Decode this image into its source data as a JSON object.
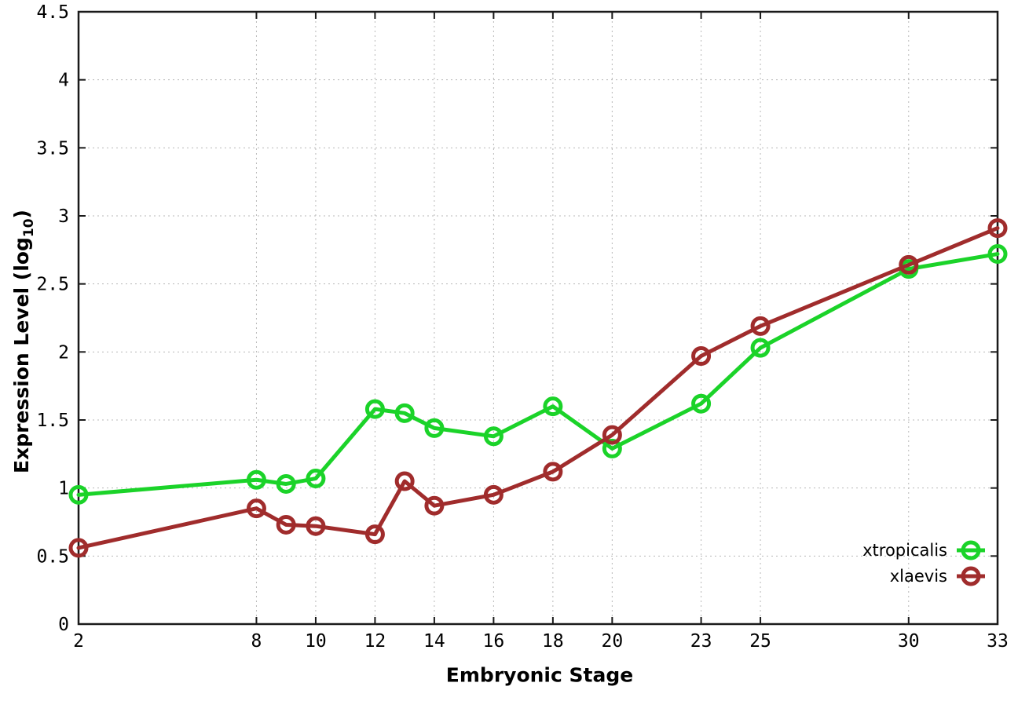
{
  "chart_data": {
    "type": "line",
    "title": "",
    "xlabel": "Embryonic Stage",
    "ylabel": "Expression Level (log10)",
    "ylabel_parts": {
      "main": "Expression Level (log",
      "sub": "10",
      "end": ")"
    },
    "xlim": [
      2,
      33
    ],
    "ylim": [
      0,
      4.5
    ],
    "xticks": [
      2,
      8,
      10,
      12,
      14,
      16,
      18,
      20,
      23,
      25,
      30,
      33
    ],
    "yticks": [
      0,
      0.5,
      1,
      1.5,
      2,
      2.5,
      3,
      3.5,
      4,
      4.5
    ],
    "grid": true,
    "legend_position": "inside-bottom-right",
    "x": [
      2,
      8,
      9,
      10,
      12,
      13,
      14,
      16,
      18,
      20,
      23,
      25,
      30,
      33
    ],
    "series": [
      {
        "name": "xtropicalis",
        "color": "#1bd329",
        "values": [
          0.95,
          1.06,
          1.03,
          1.07,
          1.58,
          1.55,
          1.44,
          1.38,
          1.6,
          1.29,
          1.62,
          2.03,
          2.61,
          2.72
        ]
      },
      {
        "name": "xlaevis",
        "color": "#a02c2c",
        "values": [
          0.56,
          0.85,
          0.73,
          0.72,
          0.66,
          1.05,
          0.87,
          0.95,
          1.12,
          1.39,
          1.97,
          2.19,
          2.64,
          2.91
        ]
      }
    ],
    "axis_color": "#1a1a1a",
    "grid_color": "#b8b8b8",
    "tick_label_color": "#000000"
  }
}
